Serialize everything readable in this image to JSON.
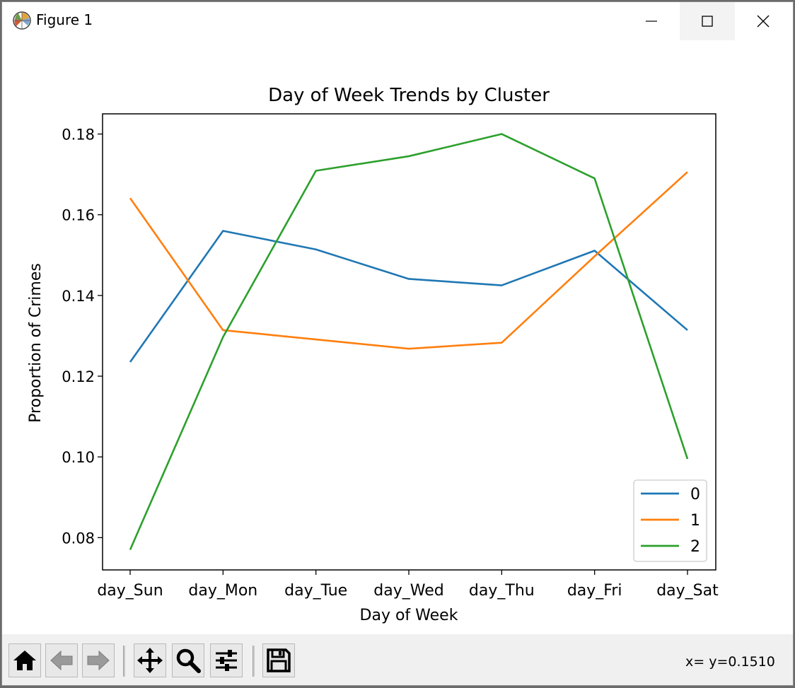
{
  "window": {
    "title": "Figure 1",
    "app_icon": "matplotlib-logo-icon",
    "controls": [
      "minimize-icon",
      "maximize-icon",
      "close-icon"
    ]
  },
  "chart_data": {
    "type": "line",
    "title": "Day of Week Trends by Cluster",
    "xlabel": "Day of Week",
    "ylabel": "Proportion of Crimes",
    "categories": [
      "day_Sun",
      "day_Mon",
      "day_Tue",
      "day_Wed",
      "day_Thu",
      "day_Fri",
      "day_Sat"
    ],
    "ylim": [
      0.072,
      0.185
    ],
    "yticks": [
      0.08,
      0.1,
      0.12,
      0.14,
      0.16,
      0.18
    ],
    "ytick_labels": [
      "0.08",
      "0.10",
      "0.12",
      "0.14",
      "0.16",
      "0.18"
    ],
    "grid": false,
    "legend_position": "lower right",
    "series": [
      {
        "name": "0",
        "color": "#1f77b4",
        "values": [
          0.1235,
          0.156,
          0.1514,
          0.1441,
          0.1425,
          0.1511,
          0.1314
        ]
      },
      {
        "name": "1",
        "color": "#ff7f0e",
        "values": [
          0.1641,
          0.1314,
          0.1291,
          0.1268,
          0.1283,
          0.1497,
          0.1706
        ]
      },
      {
        "name": "2",
        "color": "#2ca02c",
        "values": [
          0.077,
          0.1297,
          0.1709,
          0.1745,
          0.18,
          0.169,
          0.0995
        ]
      }
    ]
  },
  "toolbar": {
    "buttons": [
      "home-icon",
      "back-icon",
      "forward-icon",
      "pan-icon",
      "zoom-icon",
      "configure-subplots-icon",
      "save-icon"
    ],
    "coords_text": "x= y=0.1510"
  }
}
